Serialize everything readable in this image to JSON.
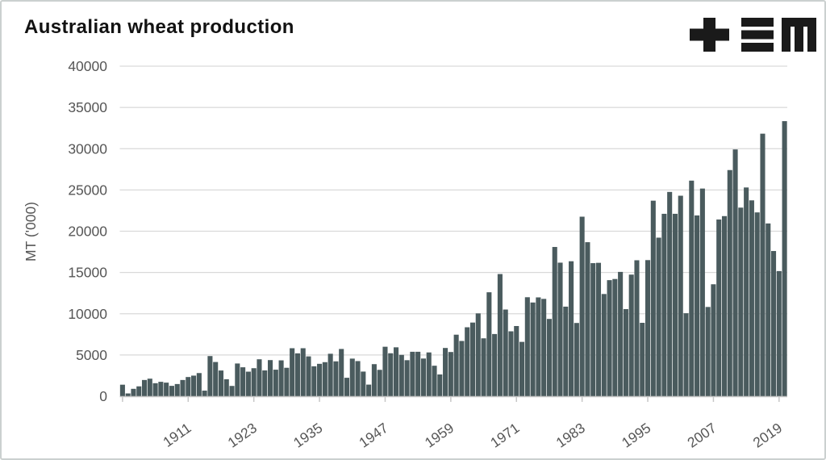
{
  "title": "Australian wheat production",
  "logo": {
    "label": "+≡M",
    "color": "#1a1a1a",
    "glyphs": [
      "plus",
      "three-bars",
      "m"
    ]
  },
  "chart_data": {
    "type": "bar",
    "title": "Australian wheat production",
    "xlabel": "",
    "ylabel": "MT ('000)",
    "ylim": [
      0,
      40000
    ],
    "yticks": [
      0,
      5000,
      10000,
      15000,
      20000,
      25000,
      30000,
      35000,
      40000
    ],
    "xtick_years": [
      1911,
      1923,
      1935,
      1947,
      1959,
      1971,
      1983,
      1995,
      2007,
      2019
    ],
    "grid": "horizontal",
    "legend": "none",
    "bar_color": "#4a5b5e",
    "grid_color": "#d9d9d9",
    "axis_color": "#c7c7c7",
    "label_color": "#565656",
    "years": [
      1899,
      1900,
      1901,
      1902,
      1903,
      1904,
      1905,
      1906,
      1907,
      1908,
      1909,
      1910,
      1911,
      1912,
      1913,
      1914,
      1915,
      1916,
      1917,
      1918,
      1919,
      1920,
      1921,
      1922,
      1923,
      1924,
      1925,
      1926,
      1927,
      1928,
      1929,
      1930,
      1931,
      1932,
      1933,
      1934,
      1935,
      1936,
      1937,
      1938,
      1939,
      1940,
      1941,
      1942,
      1943,
      1944,
      1945,
      1946,
      1947,
      1948,
      1949,
      1950,
      1951,
      1952,
      1953,
      1954,
      1955,
      1956,
      1957,
      1958,
      1959,
      1960,
      1961,
      1962,
      1963,
      1964,
      1965,
      1966,
      1967,
      1968,
      1969,
      1970,
      1971,
      1972,
      1973,
      1974,
      1975,
      1976,
      1977,
      1978,
      1979,
      1980,
      1981,
      1982,
      1983,
      1984,
      1985,
      1986,
      1987,
      1988,
      1989,
      1990,
      1991,
      1992,
      1993,
      1994,
      1995,
      1996,
      1997,
      1998,
      1999,
      2000,
      2001,
      2002,
      2003,
      2004,
      2005,
      2006,
      2007,
      2008,
      2009,
      2010,
      2011,
      2012,
      2013,
      2014,
      2015,
      2016,
      2017,
      2018,
      2019,
      2020
    ],
    "values": [
      1400,
      340,
      900,
      1200,
      1970,
      2130,
      1580,
      1750,
      1650,
      1260,
      1480,
      1970,
      2330,
      2500,
      2810,
      680,
      4870,
      4150,
      3120,
      2060,
      1250,
      3970,
      3510,
      2980,
      3400,
      4480,
      3130,
      4380,
      3220,
      4350,
      3450,
      5820,
      5200,
      5820,
      4830,
      3630,
      3930,
      4130,
      5150,
      4230,
      5730,
      2240,
      4560,
      4260,
      2990,
      1410,
      3890,
      3200,
      6000,
      5210,
      5930,
      5010,
      4370,
      5390,
      5390,
      4570,
      5310,
      3700,
      2640,
      5850,
      5360,
      7460,
      6700,
      8360,
      8930,
      10040,
      7020,
      12600,
      7540,
      14810,
      10510,
      7870,
      8510,
      6590,
      12000,
      11360,
      11980,
      11800,
      9370,
      18090,
      16190,
      10860,
      16360,
      8880,
      21760,
      18670,
      16130,
      16170,
      12390,
      14070,
      14210,
      15070,
      10560,
      14740,
      16480,
      8900,
      16500,
      23700,
      19220,
      22110,
      24760,
      22110,
      24300,
      10060,
      26130,
      21910,
      25170,
      10820,
      13570,
      21420,
      21830,
      27410,
      29910,
      22860,
      25300,
      23740,
      22280,
      31820,
      20940,
      17600,
      15170,
      33340
    ]
  }
}
